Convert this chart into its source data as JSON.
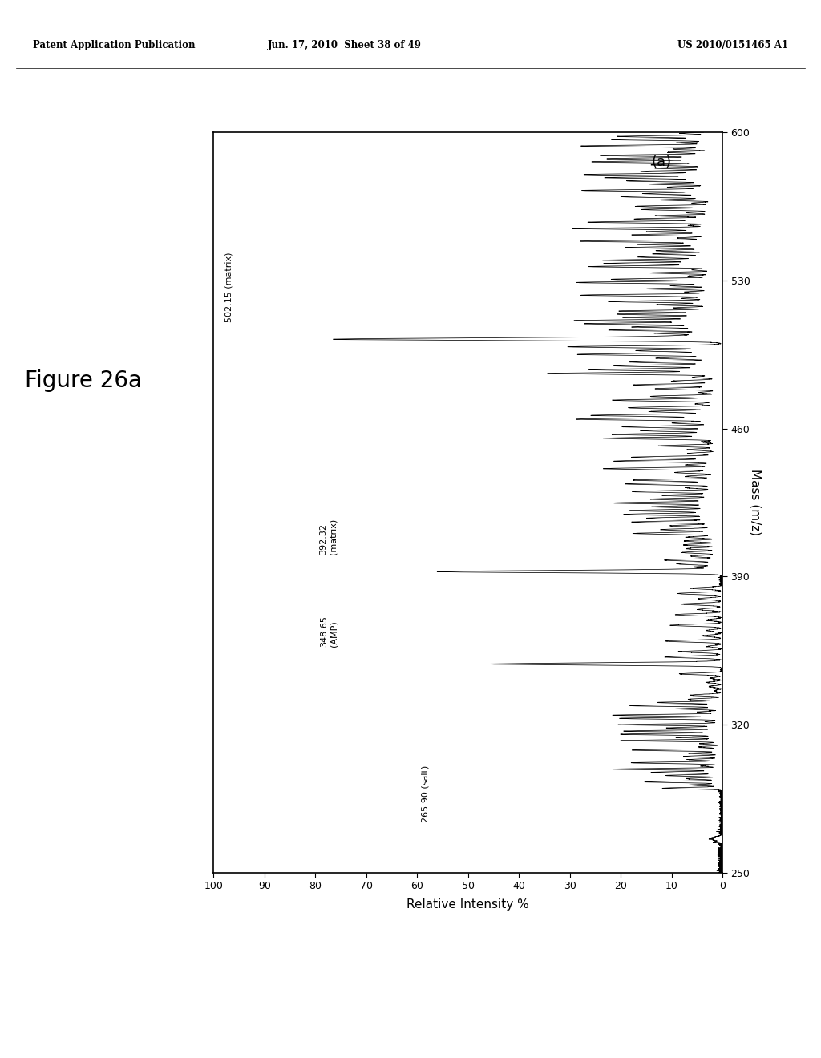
{
  "header_left": "Patent Application Publication",
  "header_mid": "Jun. 17, 2010  Sheet 38 of 49",
  "header_right": "US 2010/0151465 A1",
  "figure_label": "Figure 26a",
  "panel_label": "(a)",
  "xlabel": "Mass (m/z)",
  "ylabel": "Relative Intensity %",
  "mass_range": [
    250,
    600
  ],
  "intensity_range": [
    0,
    100
  ],
  "mass_ticks": [
    250,
    320,
    390,
    460,
    530,
    600
  ],
  "intensity_ticks": [
    0,
    10,
    20,
    30,
    40,
    50,
    60,
    70,
    80,
    90,
    100
  ],
  "peak_annotations": [
    {
      "mass": 265.9,
      "label": "265.90 (salt)",
      "peak_intensity": 5
    },
    {
      "mass": 348.65,
      "label": "348.65\n(AMP)",
      "peak_intensity": 45
    },
    {
      "mass": 392.32,
      "label": "392.32\n(matrix)",
      "peak_intensity": 55
    },
    {
      "mass": 502.15,
      "label": "502.15 (matrix)",
      "peak_intensity": 75
    }
  ],
  "background_color": "#ffffff",
  "line_color": "#000000"
}
